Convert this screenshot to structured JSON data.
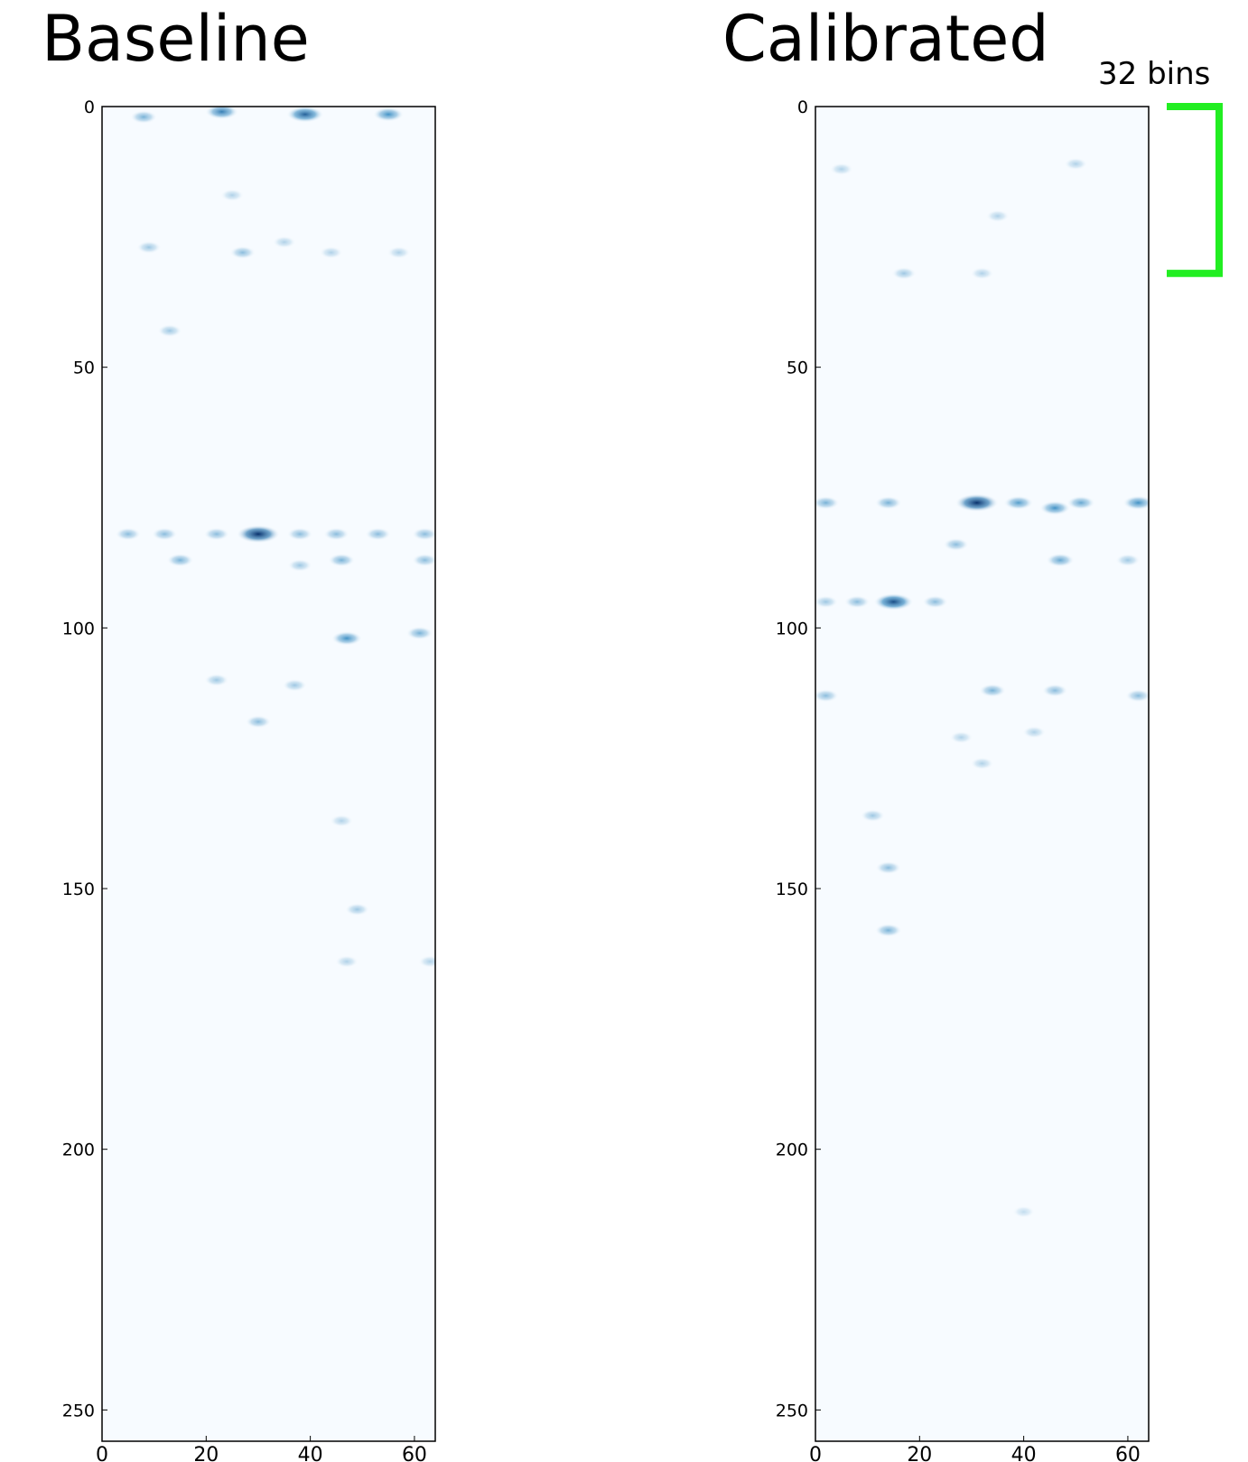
{
  "chart_data": [
    {
      "type": "heatmap",
      "title": "Baseline",
      "colormap": "Blues",
      "xlim": [
        0,
        64
      ],
      "ylim": [
        0,
        256
      ],
      "xticks": [
        "0",
        "20",
        "40",
        "60"
      ],
      "yticks": [
        "0",
        "50",
        "100",
        "150",
        "200",
        "250"
      ],
      "hotspots": [
        {
          "x": 30,
          "y": 82,
          "v": 1.0
        },
        {
          "x": 39,
          "y": 1.5,
          "v": 0.75
        },
        {
          "x": 23,
          "y": 1,
          "v": 0.6
        },
        {
          "x": 55,
          "y": 1.5,
          "v": 0.5
        },
        {
          "x": 8,
          "y": 2,
          "v": 0.35
        },
        {
          "x": 47,
          "y": 102,
          "v": 0.5
        },
        {
          "x": 61,
          "y": 101,
          "v": 0.35
        },
        {
          "x": 15,
          "y": 87,
          "v": 0.35
        },
        {
          "x": 46,
          "y": 87,
          "v": 0.35
        },
        {
          "x": 62,
          "y": 87,
          "v": 0.3
        },
        {
          "x": 27,
          "y": 28,
          "v": 0.3
        },
        {
          "x": 9,
          "y": 27,
          "v": 0.25
        },
        {
          "x": 13,
          "y": 43,
          "v": 0.25
        },
        {
          "x": 38,
          "y": 88,
          "v": 0.25
        },
        {
          "x": 30,
          "y": 118,
          "v": 0.3
        },
        {
          "x": 37,
          "y": 111,
          "v": 0.25
        },
        {
          "x": 22,
          "y": 110,
          "v": 0.25
        },
        {
          "x": 49,
          "y": 154,
          "v": 0.25
        },
        {
          "x": 47,
          "y": 164,
          "v": 0.2
        },
        {
          "x": 46,
          "y": 137,
          "v": 0.2
        },
        {
          "x": 63,
          "y": 164,
          "v": 0.2
        },
        {
          "x": 35,
          "y": 26,
          "v": 0.2
        },
        {
          "x": 44,
          "y": 28,
          "v": 0.2
        },
        {
          "x": 57,
          "y": 28,
          "v": 0.2
        },
        {
          "x": 25,
          "y": 17,
          "v": 0.2
        },
        {
          "x": 5,
          "y": 82,
          "v": 0.3
        },
        {
          "x": 12,
          "y": 82,
          "v": 0.3
        },
        {
          "x": 22,
          "y": 82,
          "v": 0.3
        },
        {
          "x": 38,
          "y": 82,
          "v": 0.3
        },
        {
          "x": 45,
          "y": 82,
          "v": 0.3
        },
        {
          "x": 53,
          "y": 82,
          "v": 0.3
        },
        {
          "x": 62,
          "y": 82,
          "v": 0.3
        }
      ]
    },
    {
      "type": "heatmap",
      "title": "Calibrated",
      "colormap": "Blues",
      "xlim": [
        0,
        64
      ],
      "ylim": [
        0,
        256
      ],
      "xticks": [
        "0",
        "20",
        "40",
        "60"
      ],
      "yticks": [
        "0",
        "50",
        "100",
        "150",
        "200",
        "250"
      ],
      "hotspots": [
        {
          "x": 31,
          "y": 76,
          "v": 1.0
        },
        {
          "x": 15,
          "y": 95,
          "v": 0.85
        },
        {
          "x": 62,
          "y": 76,
          "v": 0.5
        },
        {
          "x": 46,
          "y": 77,
          "v": 0.5
        },
        {
          "x": 39,
          "y": 76,
          "v": 0.45
        },
        {
          "x": 51,
          "y": 76,
          "v": 0.4
        },
        {
          "x": 14,
          "y": 76,
          "v": 0.35
        },
        {
          "x": 2,
          "y": 76,
          "v": 0.35
        },
        {
          "x": 47,
          "y": 87,
          "v": 0.4
        },
        {
          "x": 27,
          "y": 84,
          "v": 0.3
        },
        {
          "x": 60,
          "y": 87,
          "v": 0.25
        },
        {
          "x": 8,
          "y": 95,
          "v": 0.3
        },
        {
          "x": 23,
          "y": 95,
          "v": 0.3
        },
        {
          "x": 2,
          "y": 95,
          "v": 0.25
        },
        {
          "x": 34,
          "y": 112,
          "v": 0.35
        },
        {
          "x": 2,
          "y": 113,
          "v": 0.3
        },
        {
          "x": 46,
          "y": 112,
          "v": 0.3
        },
        {
          "x": 62,
          "y": 113,
          "v": 0.3
        },
        {
          "x": 14,
          "y": 158,
          "v": 0.35
        },
        {
          "x": 14,
          "y": 146,
          "v": 0.3
        },
        {
          "x": 17,
          "y": 32,
          "v": 0.25
        },
        {
          "x": 32,
          "y": 32,
          "v": 0.2
        },
        {
          "x": 50,
          "y": 11,
          "v": 0.2
        },
        {
          "x": 5,
          "y": 12,
          "v": 0.2
        },
        {
          "x": 35,
          "y": 21,
          "v": 0.2
        },
        {
          "x": 11,
          "y": 136,
          "v": 0.25
        },
        {
          "x": 42,
          "y": 120,
          "v": 0.2
        },
        {
          "x": 28,
          "y": 121,
          "v": 0.2
        },
        {
          "x": 32,
          "y": 126,
          "v": 0.2
        },
        {
          "x": 40,
          "y": 212,
          "v": 0.15
        }
      ]
    }
  ],
  "annotation": {
    "label": "32 bins",
    "color": "#22ee22",
    "y_start": 0,
    "y_end": 32
  }
}
